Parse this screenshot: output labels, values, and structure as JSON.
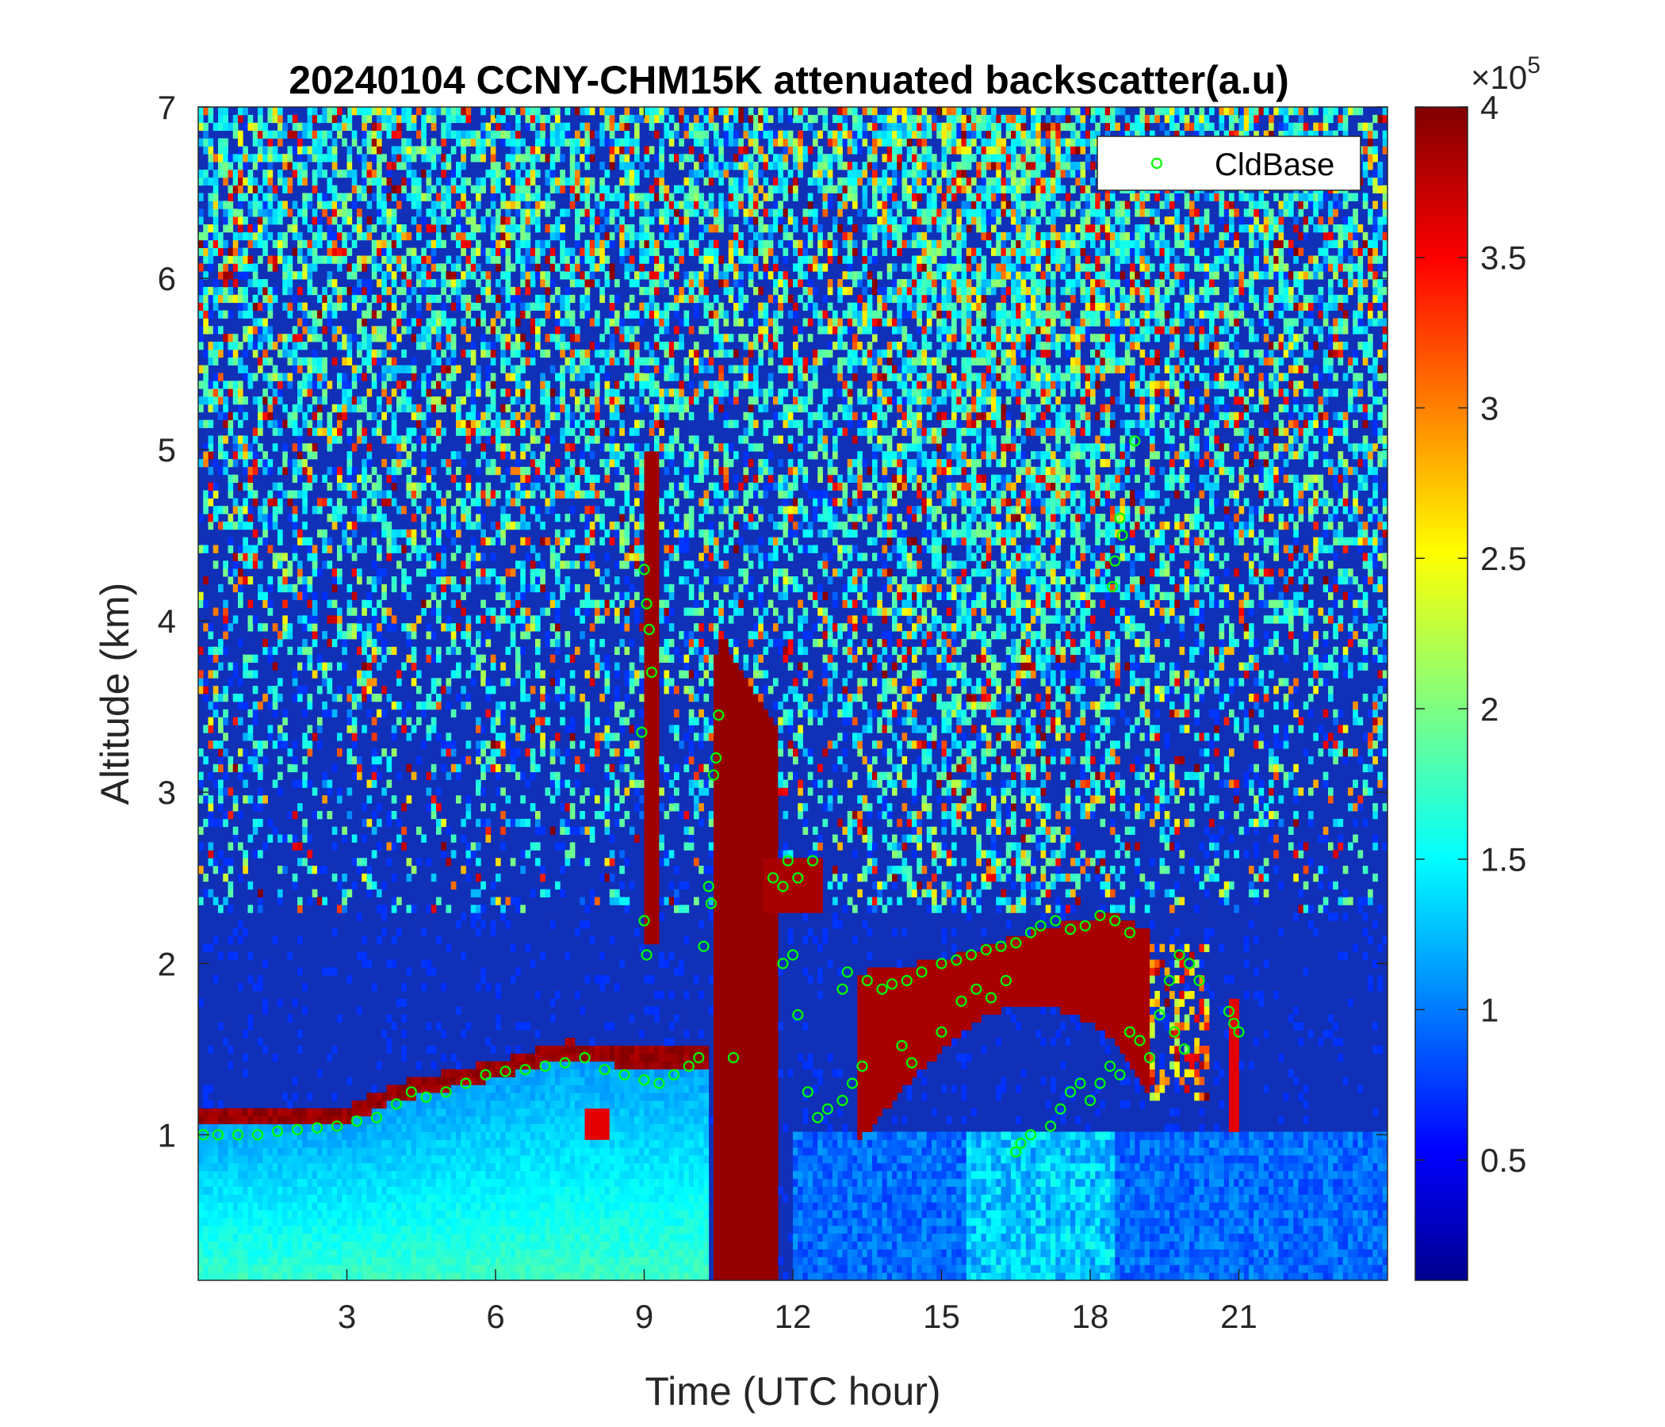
{
  "chart_data": {
    "type": "heatmap",
    "title": "20240104 CCNY-CHM15K attenuated backscatter(a.u)",
    "xlabel": "Time (UTC hour)",
    "ylabel": "Altitude (km)",
    "xlim": [
      0,
      24
    ],
    "ylim": [
      0.15,
      7
    ],
    "xticks": [
      3,
      6,
      9,
      12,
      15,
      18,
      21
    ],
    "xtick_labels": [
      "3",
      "6",
      "9",
      "12",
      "15",
      "18",
      "21"
    ],
    "yticks": [
      1,
      2,
      3,
      4,
      5,
      6,
      7
    ],
    "ytick_labels": [
      "1",
      "2",
      "3",
      "4",
      "5",
      "6",
      "7"
    ],
    "colorbar": {
      "colormap": "jet",
      "clim": [
        0.1,
        4
      ],
      "ticks": [
        0.5,
        1,
        1.5,
        2,
        2.5,
        3,
        3.5,
        4
      ],
      "tick_labels": [
        "0.5",
        "1",
        "1.5",
        "2",
        "2.5",
        "3",
        "3.5",
        "4"
      ],
      "exponent_label": "×10",
      "exponent_power": "5"
    },
    "legend": {
      "position": "top-right",
      "entries": [
        "CldBase"
      ]
    },
    "series": [
      {
        "name": "CldBase",
        "marker": "circle",
        "color": "#00ff00",
        "points": [
          [
            0.1,
            1.0
          ],
          [
            0.4,
            1.0
          ],
          [
            0.8,
            1.0
          ],
          [
            1.2,
            1.0
          ],
          [
            1.6,
            1.02
          ],
          [
            2.0,
            1.03
          ],
          [
            2.4,
            1.04
          ],
          [
            2.8,
            1.05
          ],
          [
            3.2,
            1.08
          ],
          [
            3.6,
            1.1
          ],
          [
            4.0,
            1.18
          ],
          [
            4.3,
            1.25
          ],
          [
            4.6,
            1.22
          ],
          [
            5.0,
            1.25
          ],
          [
            5.4,
            1.3
          ],
          [
            5.8,
            1.35
          ],
          [
            6.2,
            1.37
          ],
          [
            6.6,
            1.38
          ],
          [
            7.0,
            1.4
          ],
          [
            7.4,
            1.42
          ],
          [
            7.8,
            1.45
          ],
          [
            8.2,
            1.38
          ],
          [
            8.6,
            1.35
          ],
          [
            9.0,
            1.32
          ],
          [
            9.3,
            1.3
          ],
          [
            9.6,
            1.35
          ],
          [
            9.9,
            1.4
          ],
          [
            10.1,
            1.45
          ],
          [
            9.0,
            4.3
          ],
          [
            9.05,
            4.1
          ],
          [
            9.1,
            3.95
          ],
          [
            9.15,
            3.7
          ],
          [
            8.95,
            3.35
          ],
          [
            9.0,
            2.25
          ],
          [
            9.05,
            2.05
          ],
          [
            10.2,
            2.1
          ],
          [
            10.3,
            2.45
          ],
          [
            10.35,
            2.35
          ],
          [
            10.4,
            3.1
          ],
          [
            10.45,
            3.2
          ],
          [
            10.5,
            3.45
          ],
          [
            10.8,
            1.45
          ],
          [
            11.6,
            2.5
          ],
          [
            11.8,
            2.45
          ],
          [
            11.9,
            2.6
          ],
          [
            12.1,
            2.5
          ],
          [
            12.4,
            2.6
          ],
          [
            11.8,
            2.0
          ],
          [
            12.0,
            2.05
          ],
          [
            12.1,
            1.7
          ],
          [
            12.3,
            1.25
          ],
          [
            12.5,
            1.1
          ],
          [
            12.7,
            1.15
          ],
          [
            13.0,
            1.2
          ],
          [
            13.2,
            1.3
          ],
          [
            13.4,
            1.4
          ],
          [
            13.1,
            1.95
          ],
          [
            13.0,
            1.85
          ],
          [
            13.5,
            1.9
          ],
          [
            13.8,
            1.85
          ],
          [
            14.0,
            1.88
          ],
          [
            14.3,
            1.9
          ],
          [
            14.6,
            1.95
          ],
          [
            15.0,
            2.0
          ],
          [
            15.3,
            2.02
          ],
          [
            15.6,
            2.05
          ],
          [
            15.9,
            2.08
          ],
          [
            16.2,
            2.1
          ],
          [
            16.5,
            2.12
          ],
          [
            16.8,
            2.18
          ],
          [
            17.0,
            2.22
          ],
          [
            17.3,
            2.25
          ],
          [
            17.6,
            2.2
          ],
          [
            17.9,
            2.22
          ],
          [
            18.2,
            2.28
          ],
          [
            18.5,
            2.25
          ],
          [
            18.8,
            2.18
          ],
          [
            14.2,
            1.52
          ],
          [
            14.4,
            1.42
          ],
          [
            15.0,
            1.6
          ],
          [
            15.4,
            1.78
          ],
          [
            15.7,
            1.85
          ],
          [
            16.0,
            1.8
          ],
          [
            16.3,
            1.9
          ],
          [
            16.5,
            0.9
          ],
          [
            16.6,
            0.95
          ],
          [
            16.8,
            1.0
          ],
          [
            17.2,
            1.05
          ],
          [
            17.4,
            1.15
          ],
          [
            17.6,
            1.25
          ],
          [
            17.8,
            1.3
          ],
          [
            18.0,
            1.2
          ],
          [
            18.2,
            1.3
          ],
          [
            18.4,
            1.4
          ],
          [
            18.6,
            1.35
          ],
          [
            18.8,
            1.6
          ],
          [
            19.0,
            1.55
          ],
          [
            19.2,
            1.45
          ],
          [
            19.4,
            1.7
          ],
          [
            19.6,
            1.9
          ],
          [
            19.8,
            2.05
          ],
          [
            20.0,
            2.0
          ],
          [
            20.2,
            1.9
          ],
          [
            19.7,
            1.6
          ],
          [
            19.9,
            1.5
          ],
          [
            18.45,
            4.2
          ],
          [
            18.5,
            4.35
          ],
          [
            18.6,
            4.6
          ],
          [
            18.65,
            4.5
          ],
          [
            18.9,
            5.05
          ],
          [
            20.8,
            1.72
          ],
          [
            20.9,
            1.65
          ],
          [
            21.0,
            1.6
          ]
        ]
      }
    ]
  }
}
